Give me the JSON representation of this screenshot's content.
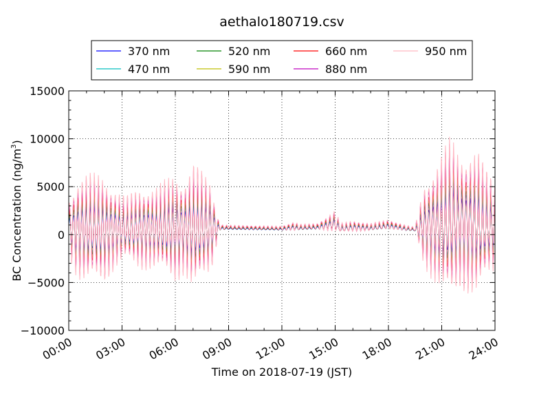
{
  "chart_data": {
    "type": "line",
    "title": "aethalo180719.csv",
    "xlabel": "Time on 2018-07-19 (JST)",
    "ylabel_main": "BC Concentration (ng/m",
    "ylabel_sup": "3",
    "ylabel_close": ")",
    "xlim": [
      "00:00",
      "24:00"
    ],
    "ylim": [
      -10000,
      15000
    ],
    "x_ticks": [
      "00:00",
      "03:00",
      "06:00",
      "09:00",
      "12:00",
      "15:00",
      "18:00",
      "21:00",
      "24:00"
    ],
    "y_ticks": [
      "15000",
      "10000",
      "5000",
      "0",
      "−5000",
      "−10000"
    ],
    "grid": true,
    "legend_position": "top",
    "series": [
      {
        "name": "370 nm",
        "color": "#0000ff",
        "amplitude_scale": 0.45
      },
      {
        "name": "470 nm",
        "color": "#00bfbf",
        "amplitude_scale": 0.55
      },
      {
        "name": "520 nm",
        "color": "#008000",
        "amplitude_scale": 0.62
      },
      {
        "name": "590 nm",
        "color": "#bfbf00",
        "amplitude_scale": 0.7
      },
      {
        "name": "660 nm",
        "color": "#ff0000",
        "amplitude_scale": 0.78
      },
      {
        "name": "880 nm",
        "color": "#bf00bf",
        "amplitude_scale": 0.92
      },
      {
        "name": "950 nm",
        "color": "#ffb6c1",
        "amplitude_scale": 1.0
      }
    ],
    "reference_envelope_950nm": {
      "note_hours": [
        0,
        0.5,
        1,
        2,
        2.8,
        3.2,
        4,
        5,
        6,
        6.5,
        7,
        8,
        8.5,
        9,
        12,
        12.7,
        13,
        14,
        15,
        15.3,
        16,
        17,
        18,
        19,
        19.5,
        20,
        21,
        21.5,
        22,
        23,
        23.5,
        24
      ],
      "amplitude_ngm3": [
        3000,
        5500,
        6000,
        5800,
        4000,
        3500,
        4500,
        4500,
        6000,
        5000,
        7000,
        5000,
        300,
        200,
        200,
        500,
        300,
        300,
        1200,
        500,
        600,
        400,
        500,
        300,
        200,
        4500,
        7500,
        9000,
        7500,
        8000,
        6000,
        5000
      ],
      "baseline_ngm3": [
        800,
        700,
        600,
        600,
        700,
        600,
        700,
        700,
        700,
        800,
        800,
        800,
        800,
        800,
        700,
        900,
        800,
        900,
        1400,
        700,
        900,
        800,
        1100,
        700,
        600,
        1000,
        1200,
        1500,
        1500,
        1200,
        1000,
        900
      ]
    }
  }
}
